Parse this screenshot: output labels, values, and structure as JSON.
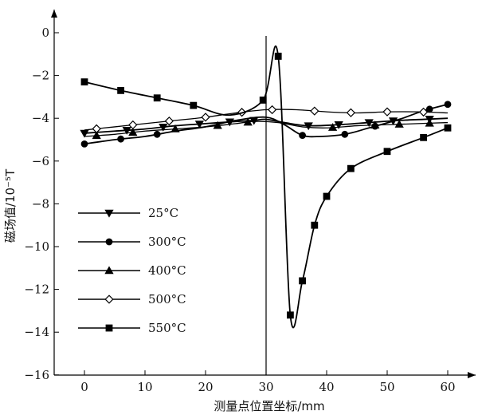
{
  "chart_data": {
    "type": "line",
    "xlabel": "测量点位置坐标/mm",
    "ylabel": "磁场值/10⁻⁵T",
    "xlim": [
      -4,
      65
    ],
    "ylim": [
      -16,
      1
    ],
    "x_ticks": [
      "0",
      "10",
      "20",
      "30",
      "40",
      "50",
      "60"
    ],
    "y_ticks": [
      "0",
      "−2",
      "−4",
      "−6",
      "−8",
      "−10",
      "−12",
      "−14",
      "−16"
    ],
    "vertical_line_x": 30,
    "grid": false,
    "legend_position": "left-bottom",
    "series": [
      {
        "name": "25°C",
        "marker": "triangle-down",
        "filled": true,
        "x": [
          0,
          6,
          12,
          18,
          24,
          28,
          36,
          42,
          48,
          54,
          62
        ],
        "y": [
          -4.7,
          -4.6,
          -4.45,
          -4.3,
          -4.15,
          -4.05,
          -4.35,
          -4.3,
          -4.2,
          -4.1,
          -4.0
        ],
        "points": [
          [
            0,
            -4.7
          ],
          [
            5,
            -4.6
          ],
          [
            10,
            -4.5
          ],
          [
            15,
            -4.35
          ],
          [
            20,
            -4.25
          ],
          [
            25,
            -4.15
          ],
          [
            28,
            -4.1
          ],
          [
            30,
            -4.05
          ],
          [
            33,
            -4.2
          ],
          [
            37,
            -4.35
          ],
          [
            42,
            -4.3
          ],
          [
            47,
            -4.2
          ],
          [
            52,
            -4.1
          ],
          [
            56,
            -4.05
          ],
          [
            60,
            -4.0
          ]
        ],
        "marker_x": [
          0,
          7,
          13,
          19,
          24,
          28,
          37,
          42,
          47,
          51,
          57
        ]
      },
      {
        "name": "300°C",
        "marker": "circle",
        "filled": true,
        "points": [
          [
            0,
            -5.2
          ],
          [
            5,
            -5.0
          ],
          [
            10,
            -4.85
          ],
          [
            15,
            -4.6
          ],
          [
            20,
            -4.4
          ],
          [
            25,
            -4.1
          ],
          [
            30,
            -3.95
          ],
          [
            33,
            -4.3
          ],
          [
            36,
            -4.8
          ],
          [
            39,
            -4.85
          ],
          [
            43,
            -4.75
          ],
          [
            47,
            -4.45
          ],
          [
            52,
            -4.05
          ],
          [
            56,
            -3.65
          ],
          [
            60,
            -3.35
          ]
        ],
        "marker_x": [
          0,
          6,
          12,
          36,
          43,
          48,
          57,
          60
        ]
      },
      {
        "name": "400°C",
        "marker": "triangle-up",
        "filled": true,
        "points": [
          [
            0,
            -4.85
          ],
          [
            5,
            -4.75
          ],
          [
            10,
            -4.6
          ],
          [
            15,
            -4.5
          ],
          [
            20,
            -4.4
          ],
          [
            25,
            -4.25
          ],
          [
            28,
            -4.15
          ],
          [
            32,
            -4.2
          ],
          [
            36,
            -4.4
          ],
          [
            40,
            -4.45
          ],
          [
            45,
            -4.35
          ],
          [
            50,
            -4.3
          ],
          [
            55,
            -4.25
          ],
          [
            60,
            -4.2
          ]
        ],
        "marker_x": [
          2,
          8,
          15,
          22,
          27,
          41,
          48,
          52,
          57
        ]
      },
      {
        "name": "500°C",
        "marker": "diamond",
        "filled": false,
        "points": [
          [
            0,
            -4.55
          ],
          [
            5,
            -4.4
          ],
          [
            10,
            -4.25
          ],
          [
            15,
            -4.1
          ],
          [
            20,
            -3.95
          ],
          [
            25,
            -3.75
          ],
          [
            30,
            -3.6
          ],
          [
            35,
            -3.6
          ],
          [
            40,
            -3.7
          ],
          [
            45,
            -3.75
          ],
          [
            50,
            -3.7
          ],
          [
            55,
            -3.7
          ],
          [
            60,
            -3.75
          ]
        ],
        "marker_x": [
          2,
          8,
          14,
          20,
          26,
          31,
          38,
          44,
          50,
          56
        ]
      },
      {
        "name": "550°C",
        "marker": "square",
        "filled": true,
        "points": [
          [
            0,
            -2.3
          ],
          [
            6,
            -2.7
          ],
          [
            12,
            -3.05
          ],
          [
            18,
            -3.4
          ],
          [
            24,
            -3.85
          ],
          [
            29.5,
            -3.15
          ],
          [
            32,
            -1.1
          ],
          [
            34,
            -13.2
          ],
          [
            36,
            -11.6
          ],
          [
            38,
            -9.0
          ],
          [
            40,
            -7.65
          ],
          [
            44,
            -6.35
          ],
          [
            50,
            -5.55
          ],
          [
            56,
            -4.9
          ],
          [
            60,
            -4.45
          ]
        ],
        "marker_x": [
          0,
          6,
          12,
          18,
          29.5,
          32,
          34,
          36,
          38,
          40,
          44,
          50,
          56,
          60
        ]
      }
    ]
  }
}
